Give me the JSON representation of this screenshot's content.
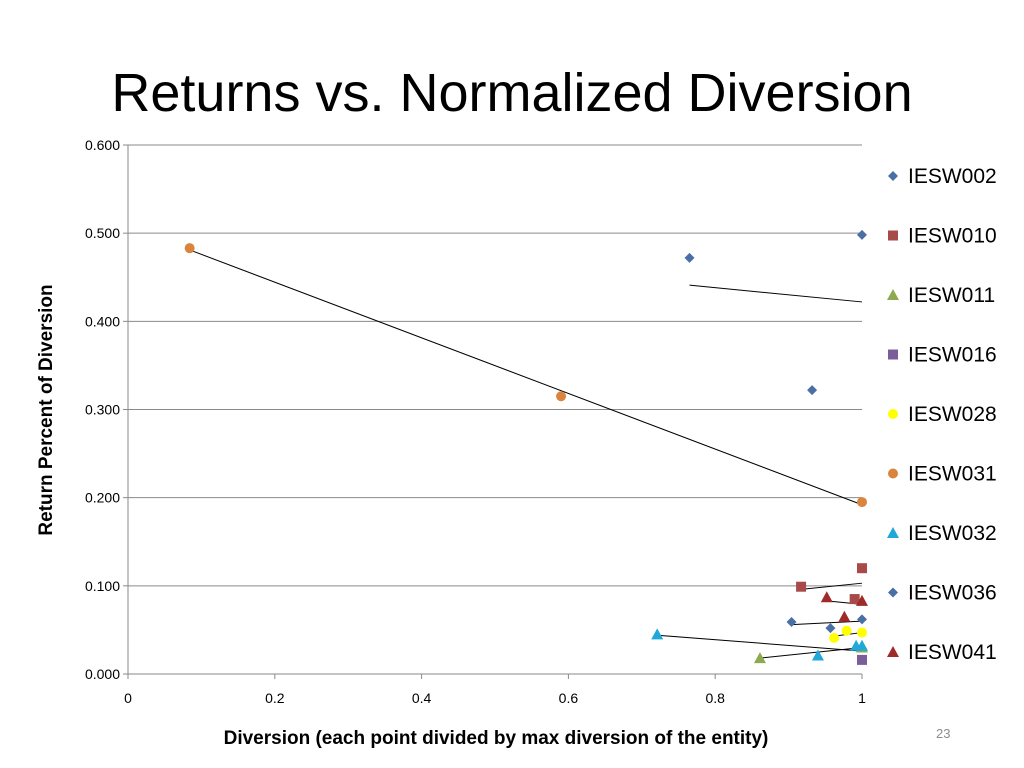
{
  "slide": {
    "title": "Returns vs. Normalized Diversion",
    "slide_number": "23"
  },
  "chart_data": {
    "type": "scatter",
    "xlabel": "Diversion (each point divided by max diversion of the entity)",
    "ylabel": "Return Percent of Diversion",
    "xlim": [
      0,
      1
    ],
    "ylim": [
      0,
      0.6
    ],
    "xticks": [
      "0",
      "0.2",
      "0.4",
      "0.6",
      "0.8",
      "1"
    ],
    "xtick_values": [
      0,
      0.2,
      0.4,
      0.6,
      0.8,
      1
    ],
    "yticks": [
      "0.000",
      "0.100",
      "0.200",
      "0.300",
      "0.400",
      "0.500",
      "0.600"
    ],
    "ytick_values": [
      0,
      0.1,
      0.2,
      0.3,
      0.4,
      0.5,
      0.6
    ],
    "grid": "horizontal",
    "legend_position": "right",
    "series": [
      {
        "name": "IESW002",
        "marker": "diamond",
        "color": "#4a6fa5",
        "points": [
          [
            0.765,
            0.472
          ],
          [
            0.932,
            0.322
          ],
          [
            1.0,
            0.498
          ]
        ],
        "trendline": [
          [
            0.765,
            0.441
          ],
          [
            1.0,
            0.422
          ]
        ]
      },
      {
        "name": "IESW010",
        "marker": "square",
        "color": "#a84a4a",
        "points": [
          [
            0.917,
            0.099
          ],
          [
            0.99,
            0.085
          ],
          [
            1.0,
            0.12
          ]
        ],
        "trendline": [
          [
            0.917,
            0.096
          ],
          [
            1.0,
            0.103
          ]
        ]
      },
      {
        "name": "IESW011",
        "marker": "triangle",
        "color": "#8caa4e",
        "points": [
          [
            0.861,
            0.018
          ],
          [
            1.0,
            0.03
          ]
        ],
        "trendline": [
          [
            0.861,
            0.018
          ],
          [
            1.0,
            0.03
          ]
        ]
      },
      {
        "name": "IESW016",
        "marker": "square",
        "color": "#7b5d99",
        "points": [
          [
            1.0,
            0.016
          ]
        ]
      },
      {
        "name": "IESW028",
        "marker": "circle",
        "color": "#ffff00",
        "points": [
          [
            0.962,
            0.041
          ],
          [
            0.979,
            0.049
          ],
          [
            1.0,
            0.047
          ]
        ],
        "trendline": [
          [
            0.962,
            0.043
          ],
          [
            1.0,
            0.047
          ]
        ]
      },
      {
        "name": "IESW031",
        "marker": "circle",
        "color": "#d9843f",
        "points": [
          [
            0.084,
            0.483
          ],
          [
            0.59,
            0.315
          ],
          [
            1.0,
            0.195
          ]
        ],
        "trendline": [
          [
            0.084,
            0.481
          ],
          [
            1.0,
            0.192
          ]
        ]
      },
      {
        "name": "IESW032",
        "marker": "triangle",
        "color": "#1fa8d8",
        "points": [
          [
            0.721,
            0.045
          ],
          [
            0.94,
            0.021
          ],
          [
            0.992,
            0.032
          ],
          [
            1.0,
            0.032
          ]
        ],
        "trendline": [
          [
            0.721,
            0.044
          ],
          [
            1.0,
            0.026
          ]
        ]
      },
      {
        "name": "IESW036",
        "marker": "diamond",
        "color": "#4a6fa5",
        "points": [
          [
            0.904,
            0.059
          ],
          [
            0.957,
            0.052
          ],
          [
            1.0,
            0.062
          ]
        ],
        "trendline": [
          [
            0.904,
            0.056
          ],
          [
            1.0,
            0.06
          ]
        ]
      },
      {
        "name": "IESW041",
        "marker": "triangle",
        "color": "#9e2a2a",
        "points": [
          [
            0.952,
            0.087
          ],
          [
            0.976,
            0.065
          ],
          [
            1.0,
            0.083
          ]
        ],
        "trendline": [
          [
            0.952,
            0.083
          ],
          [
            1.0,
            0.079
          ]
        ]
      }
    ]
  }
}
